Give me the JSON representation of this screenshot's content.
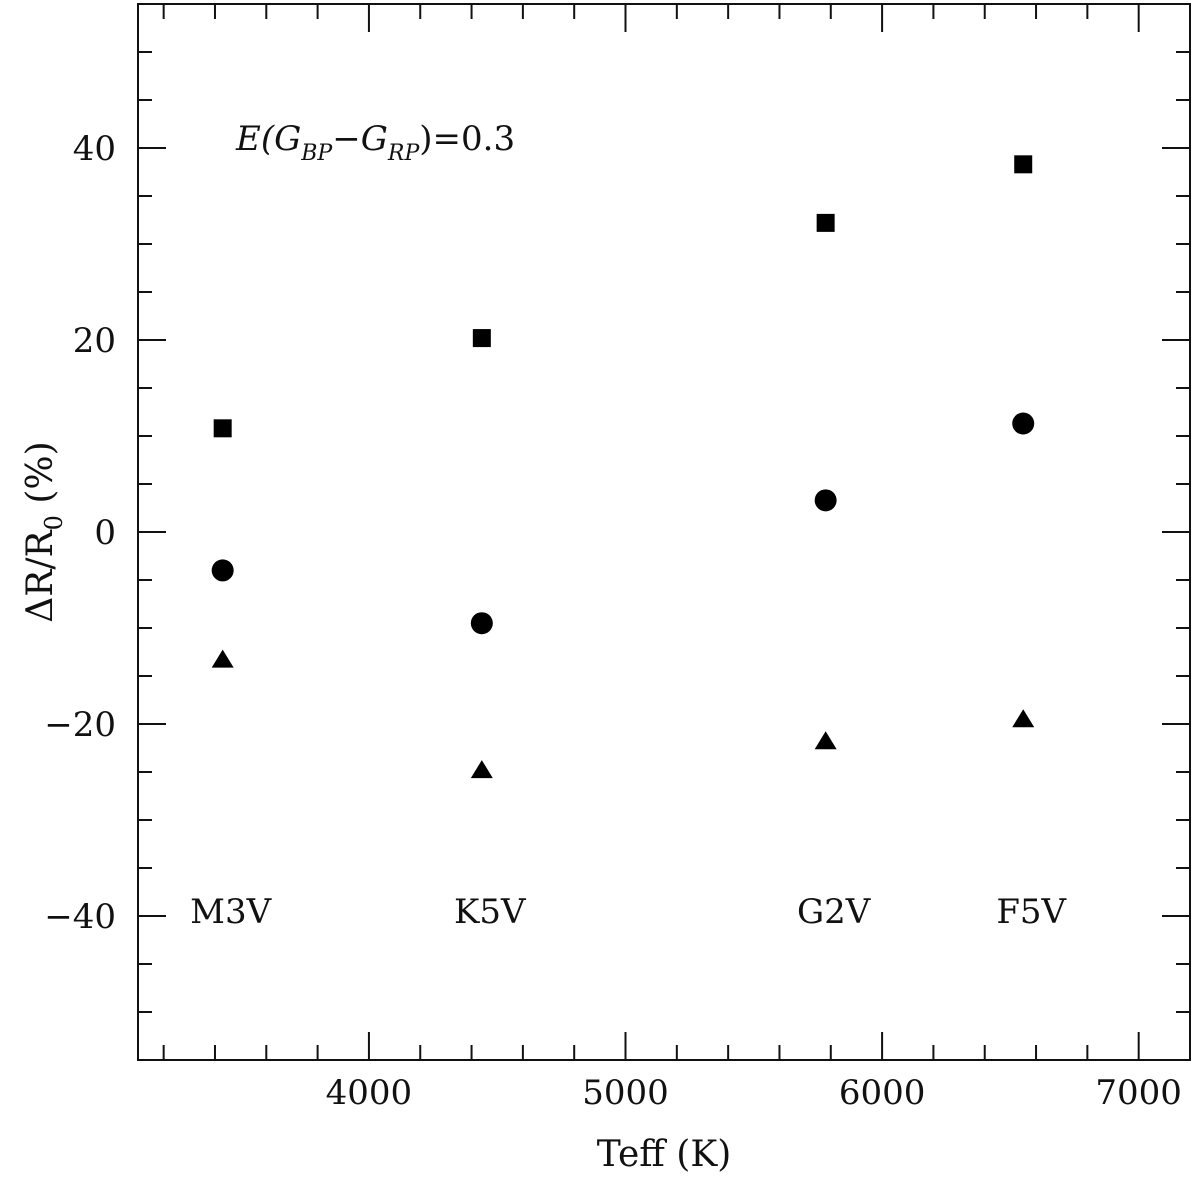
{
  "chart_data": {
    "type": "scatter",
    "title": "",
    "xlabel": "Teff (K)",
    "ylabel": {
      "prefix": "ΔR/R",
      "sub": "0",
      "suffix": " (%)"
    },
    "xlim": [
      3100,
      7200
    ],
    "ylim": [
      -55,
      55
    ],
    "x_major_ticks": [
      4000,
      5000,
      6000,
      7000
    ],
    "x_minor_step": 100,
    "x_minor_every_label": 200,
    "y_major_ticks": [
      -40,
      -20,
      0,
      20,
      40
    ],
    "y_tick_labels": [
      "−40",
      "−20",
      "0",
      "20",
      "40"
    ],
    "y_minor_step": 5,
    "annotation": {
      "e_open": "E(G",
      "bp_sub": "BP",
      "minus": "−G",
      "rp_sub": "RP",
      "close": ")=0.3"
    },
    "spectral_types": [
      {
        "label": "M3V",
        "x": 3430
      },
      {
        "label": "K5V",
        "x": 4440
      },
      {
        "label": "G2V",
        "x": 5780
      },
      {
        "label": "F5V",
        "x": 6550
      }
    ],
    "series": [
      {
        "name": "squares",
        "marker": "square",
        "x": [
          3430,
          4440,
          5780,
          6550
        ],
        "y": [
          10.8,
          20.2,
          32.2,
          38.3
        ]
      },
      {
        "name": "circles",
        "marker": "circle",
        "x": [
          3430,
          4440,
          5780,
          6550
        ],
        "y": [
          -4.0,
          -9.5,
          3.3,
          11.3
        ]
      },
      {
        "name": "triangles",
        "marker": "triangle",
        "x": [
          3430,
          4440,
          5780,
          6550
        ],
        "y": [
          -13.3,
          -24.8,
          -21.8,
          -19.5
        ]
      }
    ],
    "spectral_label_y": -39.5,
    "colors": {
      "axis": "#111111",
      "marker": "#000000"
    }
  }
}
